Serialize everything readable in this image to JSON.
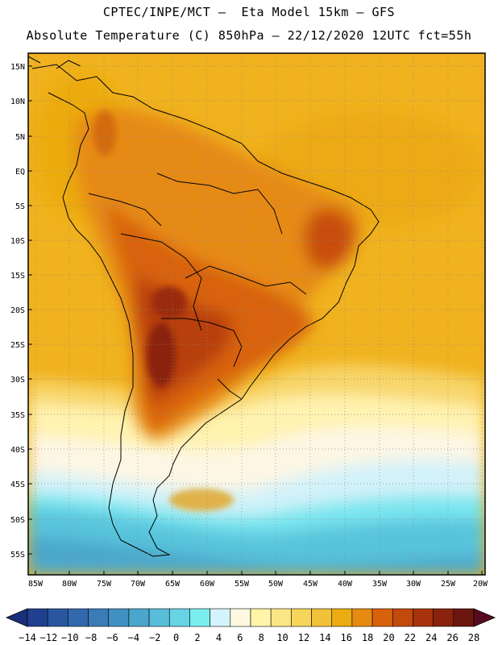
{
  "title_line1": "CPTEC/INPE/MCT –  Eta Model 15km – GFS",
  "title_line2": "Absolute Temperature (C) 850hPa – 22/12/2020 12UTC fct=55h",
  "lat_labels": [
    "15N",
    "10N",
    "5N",
    "EQ",
    "5S",
    "10S",
    "15S",
    "20S",
    "25S",
    "30S",
    "35S",
    "40S",
    "45S",
    "50S",
    "55S"
  ],
  "lon_labels": [
    "85W",
    "80W",
    "75W",
    "70W",
    "65W",
    "60W",
    "55W",
    "50W",
    "45W",
    "40W",
    "35W",
    "30W",
    "25W",
    "20W"
  ],
  "colorbar": {
    "labels": [
      "-14",
      "-12",
      "-10",
      "-8",
      "-6",
      "-4",
      "-2",
      "0",
      "2",
      "4",
      "6",
      "8",
      "10",
      "12",
      "14",
      "16",
      "18",
      "20",
      "22",
      "24",
      "26",
      "28"
    ],
    "colors": [
      "#1f3f8f",
      "#2a56a0",
      "#3268ac",
      "#3a7bb8",
      "#4290c2",
      "#4ba6cc",
      "#58bdd8",
      "#66d4e4",
      "#7aeeef",
      "#d4f4fb",
      "#fff8e0",
      "#fff4a8",
      "#fbe685",
      "#f6d55a",
      "#f1c138",
      "#ecab10",
      "#e68a12",
      "#d8620c",
      "#c24a0c",
      "#a8320c",
      "#8a220e",
      "#6b1710"
    ],
    "low_end_color": "#1a2f7a",
    "high_end_color": "#5a0a20"
  }
}
